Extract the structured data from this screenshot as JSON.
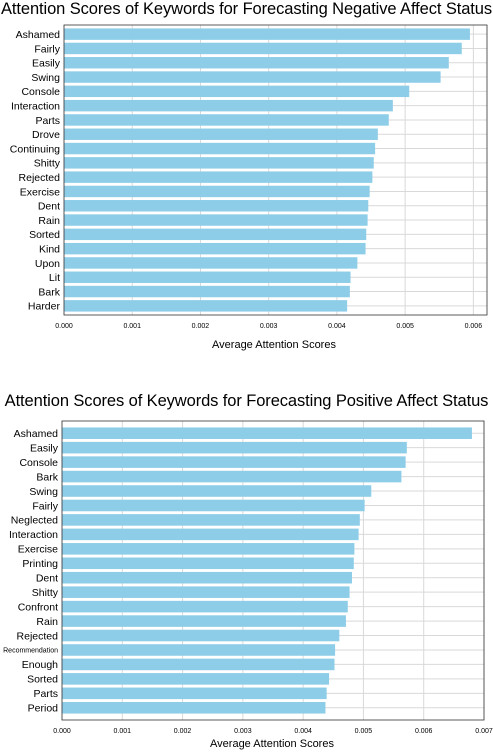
{
  "chart_data": [
    {
      "type": "bar",
      "orientation": "horizontal",
      "title": "Attention Scores of Keywords for Forecasting Negative Affect Status",
      "xlabel": "Average Attention Scores",
      "ylabel": "",
      "xlim": [
        0,
        0.0062
      ],
      "xticks": [
        "0.000",
        "0.001",
        "0.002",
        "0.003",
        "0.004",
        "0.005",
        "0.006"
      ],
      "grid": true,
      "bar_color": "#8ecde8",
      "categories": [
        "Ashamed",
        "Fairly",
        "Easily",
        "Swing",
        "Console",
        "Interaction",
        "Parts",
        "Drove",
        "Continuing",
        "Shitty",
        "Rejected",
        "Exercise",
        "Dent",
        "Rain",
        "Sorted",
        "Kind",
        "Upon",
        "Lit",
        "Bark",
        "Harder"
      ],
      "values": [
        0.00595,
        0.00583,
        0.00564,
        0.00552,
        0.00506,
        0.00482,
        0.00476,
        0.0046,
        0.00456,
        0.00454,
        0.00452,
        0.00448,
        0.00446,
        0.00445,
        0.00443,
        0.00442,
        0.0043,
        0.0042,
        0.00419,
        0.00415
      ]
    },
    {
      "type": "bar",
      "orientation": "horizontal",
      "title": "Attention Scores of Keywords for Forecasting Positive Affect Status",
      "xlabel": "Average Attention Scores",
      "ylabel": "",
      "xlim": [
        0,
        0.007
      ],
      "xticks": [
        "0.000",
        "0.001",
        "0.002",
        "0.003",
        "0.004",
        "0.005",
        "0.006",
        "0.007"
      ],
      "grid": true,
      "bar_color": "#8ecde8",
      "categories": [
        "Ashamed",
        "Easily",
        "Console",
        "Bark",
        "Swing",
        "Fairly",
        "Neglected",
        "Interaction",
        "Exercise",
        "Printing",
        "Dent",
        "Shitty",
        "Confront",
        "Rain",
        "Rejected",
        "Recommendation",
        "Enough",
        "Sorted",
        "Parts",
        "Period"
      ],
      "values": [
        0.0068,
        0.00572,
        0.0057,
        0.00563,
        0.00513,
        0.00502,
        0.00494,
        0.00492,
        0.00485,
        0.00484,
        0.00481,
        0.00477,
        0.00474,
        0.00471,
        0.0046,
        0.00453,
        0.00452,
        0.00443,
        0.00439,
        0.00437
      ]
    }
  ]
}
